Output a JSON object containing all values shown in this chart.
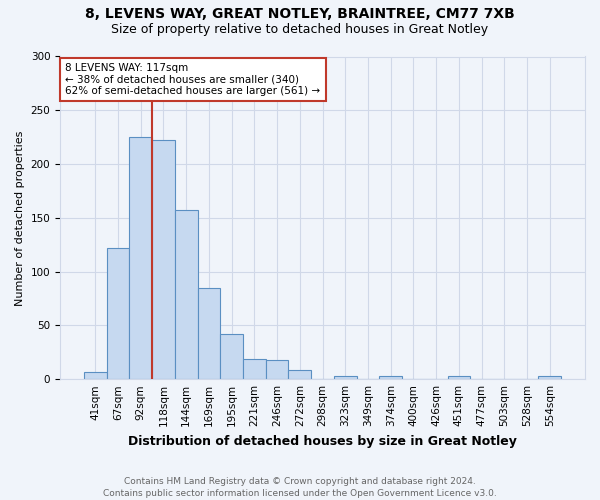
{
  "title_line1": "8, LEVENS WAY, GREAT NOTLEY, BRAINTREE, CM77 7XB",
  "title_line2": "Size of property relative to detached houses in Great Notley",
  "xlabel": "Distribution of detached houses by size in Great Notley",
  "ylabel": "Number of detached properties",
  "footnote1": "Contains HM Land Registry data © Crown copyright and database right 2024.",
  "footnote2": "Contains public sector information licensed under the Open Government Licence v3.0.",
  "bar_labels": [
    "41sqm",
    "67sqm",
    "92sqm",
    "118sqm",
    "144sqm",
    "169sqm",
    "195sqm",
    "221sqm",
    "246sqm",
    "272sqm",
    "298sqm",
    "323sqm",
    "349sqm",
    "374sqm",
    "400sqm",
    "426sqm",
    "451sqm",
    "477sqm",
    "503sqm",
    "528sqm",
    "554sqm"
  ],
  "bar_values": [
    7,
    122,
    225,
    222,
    157,
    85,
    42,
    19,
    18,
    9,
    0,
    3,
    0,
    3,
    0,
    0,
    3,
    0,
    0,
    0,
    3
  ],
  "bar_color": "#c6d9f0",
  "bar_edgecolor": "#5a8fc2",
  "vline_color": "#c0392b",
  "annotation_text": "8 LEVENS WAY: 117sqm\n← 38% of detached houses are smaller (340)\n62% of semi-detached houses are larger (561) →",
  "annotation_box_color": "#ffffff",
  "annotation_box_edgecolor": "#c0392b",
  "ylim": [
    0,
    300
  ],
  "yticks": [
    0,
    50,
    100,
    150,
    200,
    250,
    300
  ],
  "bg_color": "#f0f4fa",
  "grid_color": "#d0d8e8",
  "title1_fontsize": 10,
  "title2_fontsize": 9,
  "xlabel_fontsize": 9,
  "ylabel_fontsize": 8,
  "tick_fontsize": 7.5,
  "footnote_fontsize": 6.5,
  "vline_bar_index": 2.5
}
